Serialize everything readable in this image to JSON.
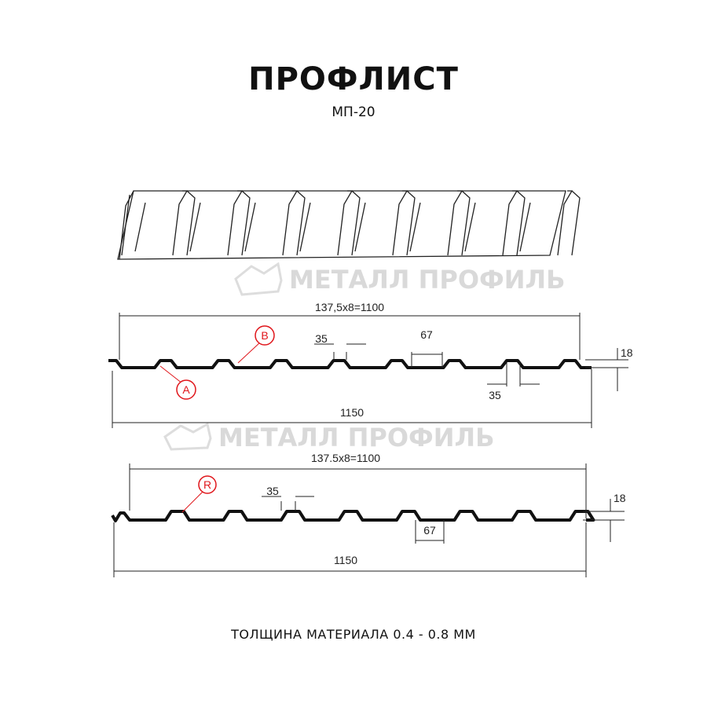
{
  "title": "ПРОФЛИСТ",
  "subtitle": "МП-20",
  "footer": "ТОЛЩИНА МАТЕРИАЛА 0.4 - 0.8 ММ",
  "watermark": "МЕТАЛЛ ПРОФИЛЬ",
  "colors": {
    "line": "#111111",
    "marker": "#e0161b",
    "watermark": "#d9d9d9"
  },
  "profile_a": {
    "cover_width": "137,5x8=1100",
    "total_width": "1150",
    "crest": "35",
    "valley": "67",
    "bottom_crest": "35",
    "height": "18",
    "marker_a": "A",
    "marker_b": "B"
  },
  "profile_b": {
    "cover_width": "137.5x8=1100",
    "total_width": "1150",
    "crest": "35",
    "valley": "67",
    "height": "18",
    "marker_r": "R"
  }
}
